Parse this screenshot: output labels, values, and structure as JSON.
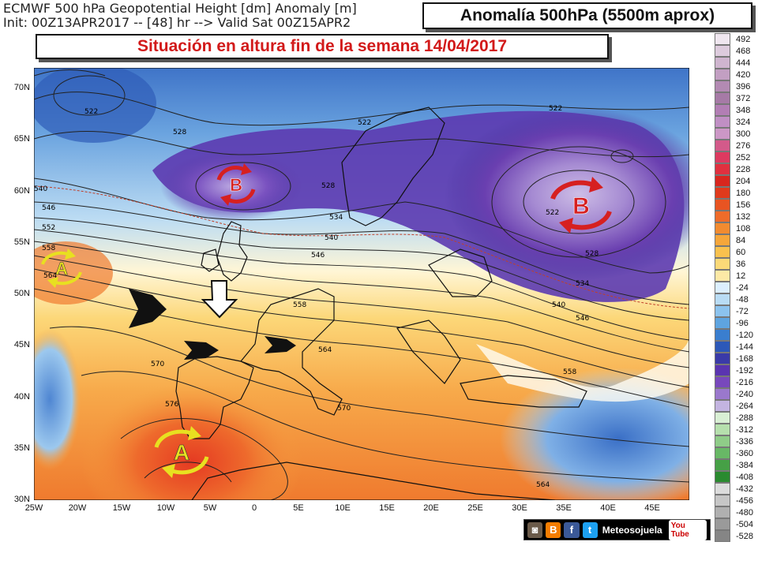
{
  "header": {
    "line1": "ECMWF 500 hPa Geopotential Height [dm] Anomaly [m]",
    "line2": "Init: 00Z13APR2017 -- [48] hr --> Valid Sat 00Z15APR2"
  },
  "title": "Anomalía 500hPa (5500m aprox)",
  "subtitle": "Situación en altura fin de la semana 14/04/2017",
  "map": {
    "lat_labels": [
      "70N",
      "65N",
      "60N",
      "55N",
      "50N",
      "45N",
      "40N",
      "35N",
      "30N"
    ],
    "lon_labels": [
      "25W",
      "20W",
      "15W",
      "10W",
      "5W",
      "0",
      "5E",
      "10E",
      "15E",
      "20E",
      "25E",
      "30E",
      "35E",
      "40E",
      "45E"
    ],
    "contour_labels": [
      "522",
      "528",
      "522",
      "522",
      "540",
      "546",
      "552",
      "558",
      "564",
      "528",
      "534",
      "540",
      "546",
      "558",
      "564",
      "570",
      "576",
      "570",
      "558",
      "528",
      "534",
      "540",
      "546",
      "522",
      "564"
    ],
    "pressure_centers": [
      {
        "letter": "B",
        "type": "low"
      },
      {
        "letter": "B",
        "type": "low"
      },
      {
        "letter": "A",
        "type": "high"
      },
      {
        "letter": "A",
        "type": "high"
      }
    ]
  },
  "scale": {
    "labels": [
      "492",
      "468",
      "444",
      "420",
      "396",
      "372",
      "348",
      "324",
      "300",
      "276",
      "252",
      "228",
      "204",
      "180",
      "156",
      "132",
      "108",
      "84",
      "60",
      "36",
      "12",
      "-24",
      "-48",
      "-72",
      "-96",
      "-120",
      "-144",
      "-168",
      "-192",
      "-216",
      "-240",
      "-264",
      "-288",
      "-312",
      "-336",
      "-360",
      "-384",
      "-408",
      "-432",
      "-456",
      "-480",
      "-504",
      "-528"
    ],
    "colors": [
      "#efe6ef",
      "#ddcbdd",
      "#cfb5cf",
      "#c29fc2",
      "#b38ab3",
      "#a67aa6",
      "#b27eb4",
      "#c08fc4",
      "#cc97c6",
      "#d35a8a",
      "#dd3a60",
      "#e0303f",
      "#d8261e",
      "#e03a1c",
      "#e85422",
      "#ef6c2a",
      "#f28b30",
      "#f6a63a",
      "#f9c14e",
      "#fbd978",
      "#fde9a6",
      "#dcefff",
      "#b9dcf5",
      "#8cc3ee",
      "#5ea4e0",
      "#3a7ecf",
      "#2c58b8",
      "#3a3aa8",
      "#5a34b0",
      "#7848bc",
      "#9a78cc",
      "#c3b4e0",
      "#d9efd4",
      "#b6e0ad",
      "#8fcc88",
      "#68b866",
      "#46a046",
      "#2a8a2f",
      "#dcdcdc",
      "#c6c6c6",
      "#b0b0b0",
      "#9a9a9a",
      "#858585"
    ]
  },
  "social": {
    "brand": "Meteosojuela",
    "youtube": "You Tube",
    "icons": [
      "instagram-icon",
      "blogger-icon",
      "facebook-icon",
      "twitter-icon"
    ]
  },
  "colors": {
    "subtitle_red": "#d21a1a",
    "low_purple": "#6a3fb0",
    "high_orange": "#f08a32",
    "arrow_red": "#d62020",
    "arrow_yellow": "#e8e020"
  }
}
